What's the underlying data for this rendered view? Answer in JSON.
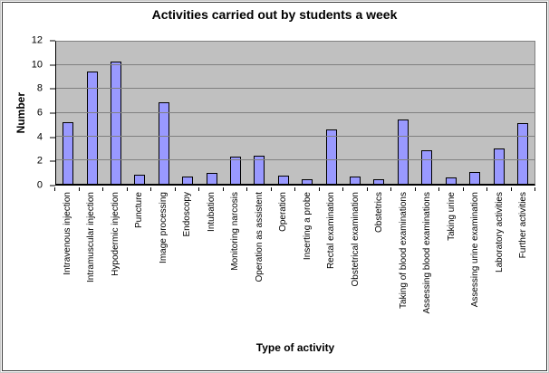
{
  "chart_data": {
    "type": "bar",
    "title": "Activities carried out by students a week",
    "xlabel": "Type of activity",
    "ylabel": "Number",
    "ylim": [
      0,
      12
    ],
    "yticks": [
      0,
      2,
      4,
      6,
      8,
      10,
      12
    ],
    "grid": true,
    "legend": false,
    "categories": [
      "Intravenous injection",
      "Intramuscular injection",
      "Hypodermic injection",
      "Puncture",
      "Image processing",
      "Endoscopy",
      "Intubation",
      "Monitoring narcosis",
      "Operation as assistent",
      "Operation",
      "Inserting a probe",
      "Rectal examination",
      "Obstetrical examination",
      "Obstetrics",
      "Taking of blood examinations",
      "Assessing blood examinations",
      "Taking urine",
      "Assessing urine examination",
      "Laboratory activities",
      "Further activities"
    ],
    "values": [
      5.2,
      9.5,
      10.3,
      0.8,
      6.9,
      0.6,
      0.9,
      2.3,
      2.4,
      0.7,
      0.4,
      4.6,
      0.6,
      0.4,
      5.4,
      2.8,
      0.5,
      1.0,
      3.0,
      5.1
    ],
    "colors": {
      "bar_fill": "#9999ff",
      "bar_border": "#000000",
      "plot_background": "#c0c0c0",
      "gridline": "#808080",
      "axis": "#000000",
      "text": "#000000",
      "chart_background": "#ffffff"
    }
  }
}
